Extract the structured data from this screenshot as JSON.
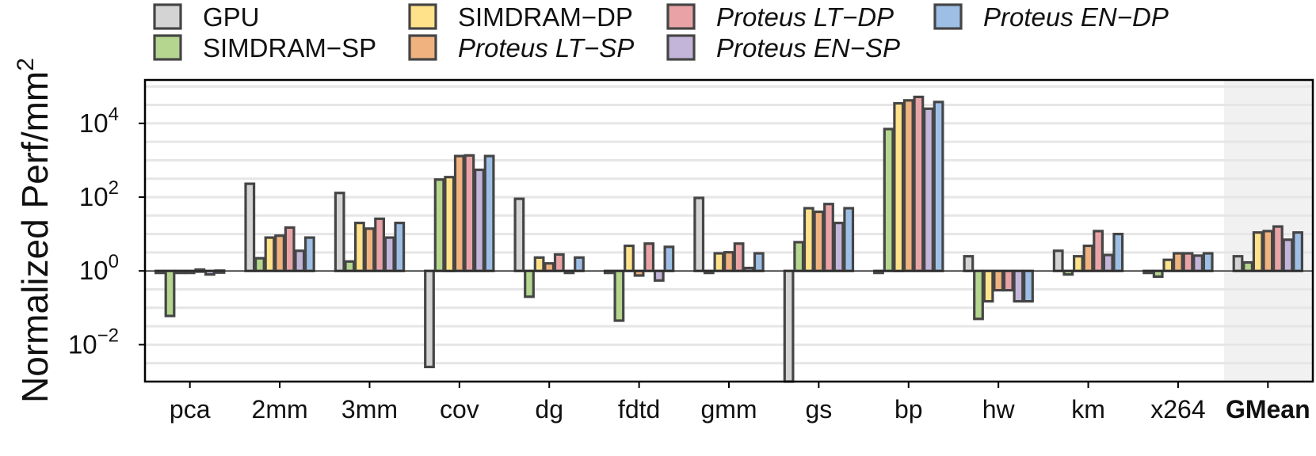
{
  "chart_data": {
    "type": "bar",
    "title": "",
    "xlabel": "",
    "ylabel": "Normalized Perf/mm",
    "ylabel_superscript": "2",
    "yscale": "log10",
    "ylim": [
      0.001,
      150000
    ],
    "yticks": [
      {
        "value": 0.01,
        "base": "10",
        "exp": "−2"
      },
      {
        "value": 1,
        "base": "10",
        "exp": "0"
      },
      {
        "value": 100,
        "base": "10",
        "exp": "2"
      },
      {
        "value": 10000,
        "base": "10",
        "exp": "4"
      }
    ],
    "baseline": 1,
    "grid": true,
    "legend_position": "top",
    "categories": [
      "pca",
      "2mm",
      "3mm",
      "cov",
      "dg",
      "fdtd",
      "gmm",
      "gs",
      "bp",
      "hw",
      "km",
      "x264",
      "GMean"
    ],
    "highlight_category": "GMean",
    "series": [
      {
        "name": "GPU",
        "italic": false,
        "color": "#d4d4d4",
        "values": [
          1.0,
          230,
          130,
          0.0025,
          90,
          1.0,
          95,
          0.0006,
          1.0,
          2.5,
          3.5,
          1.0,
          2.5
        ]
      },
      {
        "name": "SIMDRAM−SP",
        "italic": false,
        "color": "#b5d68e",
        "values": [
          0.06,
          2.2,
          1.8,
          300,
          0.2,
          0.045,
          0.9,
          6,
          7000,
          0.05,
          0.8,
          0.7,
          1.7
        ]
      },
      {
        "name": "SIMDRAM−DP",
        "italic": false,
        "color": "#ffe28a",
        "values": [
          0.95,
          8,
          20,
          350,
          2.3,
          4.8,
          3.0,
          50,
          35000,
          0.15,
          2.5,
          2.0,
          11
        ]
      },
      {
        "name": "Proteus LT−SP",
        "italic": true,
        "color": "#f0b27e",
        "values": [
          0.95,
          9,
          14,
          1300,
          1.6,
          0.75,
          3.2,
          40,
          42000,
          0.3,
          4.8,
          3.0,
          12
        ]
      },
      {
        "name": "Proteus LT−DP",
        "italic": true,
        "color": "#e9a3a6",
        "values": [
          1.08,
          15,
          26,
          1350,
          2.8,
          5.5,
          5.5,
          65,
          52000,
          0.3,
          12,
          3.0,
          16
        ]
      },
      {
        "name": "Proteus EN−SP",
        "italic": true,
        "color": "#c3b5d9",
        "values": [
          0.8,
          3.5,
          8,
          550,
          0.9,
          0.55,
          1.2,
          20,
          25000,
          0.15,
          2.7,
          2.6,
          7
        ]
      },
      {
        "name": "Proteus EN−DP",
        "italic": true,
        "color": "#9dbfe6",
        "values": [
          1.02,
          8,
          20,
          1300,
          2.3,
          4.5,
          3.0,
          50,
          38000,
          0.15,
          10,
          3.0,
          11
        ]
      }
    ]
  }
}
